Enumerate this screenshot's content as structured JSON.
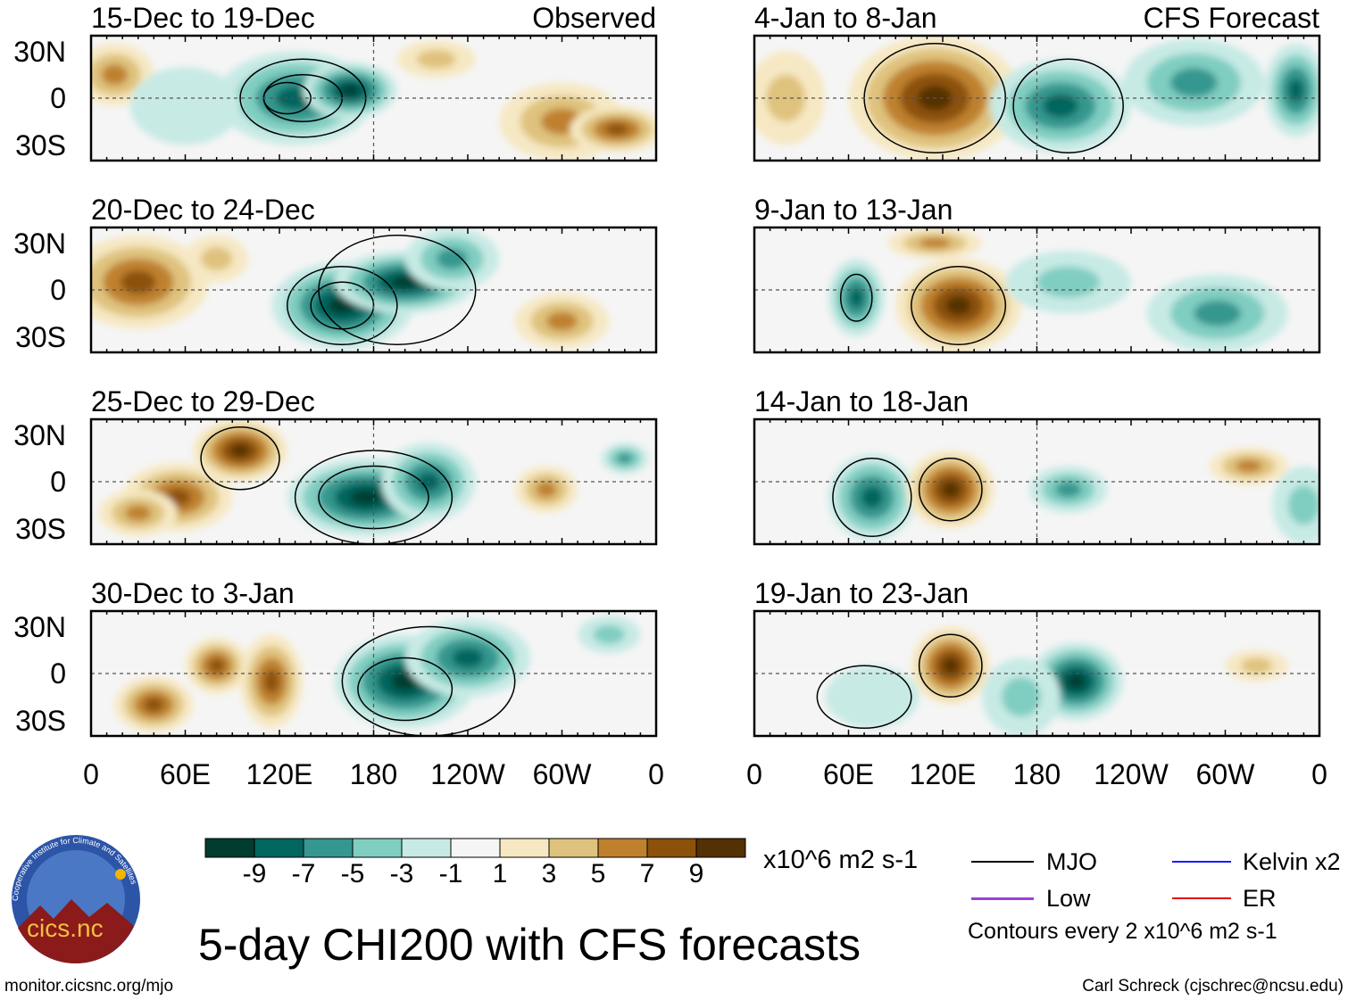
{
  "title": "5-day CHI200 with CFS forecasts",
  "panels": [
    {
      "title": "15-Dec to 19-Dec",
      "tag": "Observed"
    },
    {
      "title": "20-Dec to 24-Dec",
      "tag": ""
    },
    {
      "title": "25-Dec to 29-Dec",
      "tag": ""
    },
    {
      "title": "30-Dec to 3-Jan",
      "tag": ""
    },
    {
      "title": "4-Jan to 8-Jan",
      "tag": "CFS Forecast"
    },
    {
      "title": "9-Jan to 13-Jan",
      "tag": ""
    },
    {
      "title": "14-Jan to 18-Jan",
      "tag": ""
    },
    {
      "title": "19-Jan to 23-Jan",
      "tag": ""
    }
  ],
  "lat_labels": [
    "30N",
    "0",
    "30S"
  ],
  "lon_labels": [
    "0",
    "60E",
    "120E",
    "180",
    "120W",
    "60W",
    "0"
  ],
  "colorbar": {
    "labels": [
      "-9",
      "-7",
      "-5",
      "-3",
      "-1",
      "1",
      "3",
      "5",
      "7",
      "9"
    ],
    "colors": [
      "#003c30",
      "#01665e",
      "#35978f",
      "#80cdc1",
      "#c7eae5",
      "#f5f5f5",
      "#f6e8c3",
      "#dfc27d",
      "#bf812d",
      "#8c510a",
      "#543005"
    ],
    "units": "x10^6 m2 s-1"
  },
  "legend": {
    "items": [
      {
        "label": "MJO",
        "color": "#000000"
      },
      {
        "label": "Kelvin x2",
        "color": "#1a1aff"
      },
      {
        "label": "Low",
        "color": "#9b40d8"
      },
      {
        "label": "ER",
        "color": "#e01010"
      }
    ],
    "note": "Contours every 2 x10^6 m2 s-1"
  },
  "logo": {
    "name": "cics.nc",
    "ring": "Cooperative Institute for Climate and Satellites"
  },
  "footer": {
    "left": "monitor.cicsnc.org/mjo",
    "right": "Carl Schreck (cjschrec@ncsu.edu)"
  }
}
